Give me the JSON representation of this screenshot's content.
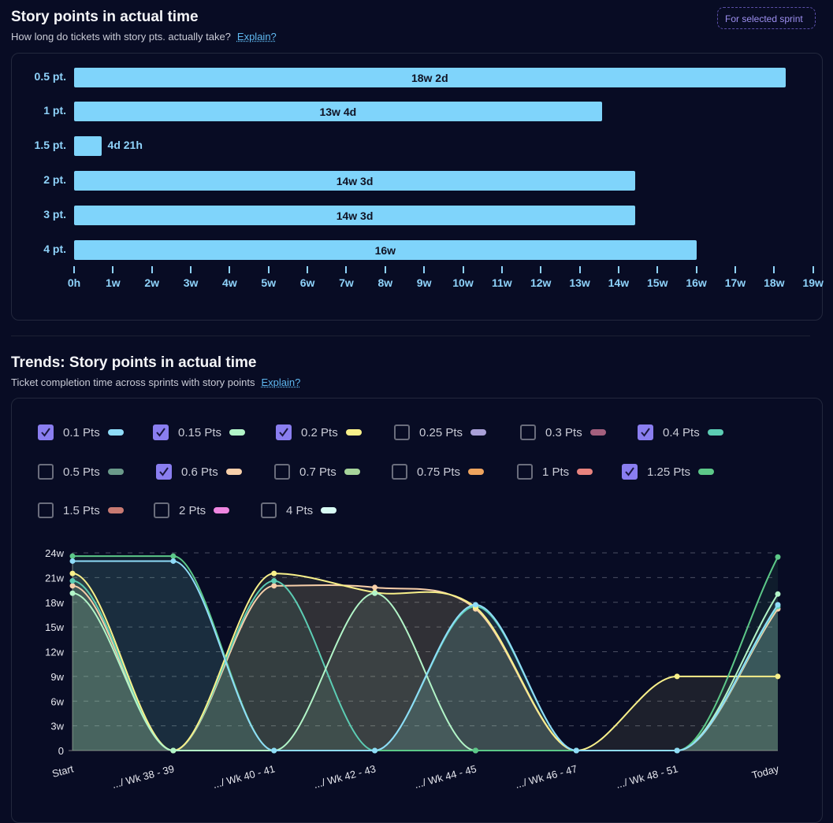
{
  "section1": {
    "title": "Story points in actual time",
    "subtitle": "How long do tickets with story pts. actually take?",
    "explain": "Explain?",
    "badge": "For selected sprint"
  },
  "section2": {
    "title": "Trends: Story points in actual time",
    "subtitle": "Ticket completion time across sprints with story points",
    "explain": "Explain?"
  },
  "chart_data": [
    {
      "type": "bar",
      "orientation": "horizontal",
      "categories": [
        "0.5 pt.",
        "1 pt.",
        "1.5 pt.",
        "2 pt.",
        "3 pt.",
        "4 pt."
      ],
      "values_weeks": [
        18.29,
        13.57,
        0.7,
        14.43,
        14.43,
        16
      ],
      "labels": [
        "18w 2d",
        "13w 4d",
        "4d 21h",
        "14w 3d",
        "14w 3d",
        "16w"
      ],
      "xticks": [
        "0h",
        "1w",
        "2w",
        "3w",
        "4w",
        "5w",
        "6w",
        "7w",
        "8w",
        "9w",
        "10w",
        "11w",
        "12w",
        "13w",
        "14w",
        "15w",
        "16w",
        "17w",
        "18w",
        "19w"
      ],
      "xlim": [
        0,
        19
      ],
      "color": "#7fd4fb"
    },
    {
      "type": "line",
      "categories": [
        "Start",
        ".../ Wk 38 - 39",
        ".../ Wk 40 - 41",
        ".../ Wk 42 - 43",
        ".../ Wk 44 - 45",
        ".../ Wk 46 - 47",
        ".../ Wk 48 - 51",
        "Today"
      ],
      "yticks": [
        "0",
        "3w",
        "6w",
        "9w",
        "12w",
        "15w",
        "18w",
        "21w",
        "24w"
      ],
      "ylim": [
        0,
        24
      ],
      "grid": true,
      "legend": [
        {
          "name": "0.1 Pts",
          "color": "#8fdcf8",
          "checked": true
        },
        {
          "name": "0.15 Pts",
          "color": "#b2f5c8",
          "checked": true
        },
        {
          "name": "0.2 Pts",
          "color": "#f8f08a",
          "checked": true
        },
        {
          "name": "0.25 Pts",
          "color": "#a9a0d8",
          "checked": false
        },
        {
          "name": "0.3 Pts",
          "color": "#a4607e",
          "checked": false
        },
        {
          "name": "0.4 Pts",
          "color": "#5ccdb4",
          "checked": true
        },
        {
          "name": "0.5 Pts",
          "color": "#6a9a8a",
          "checked": false
        },
        {
          "name": "0.6 Pts",
          "color": "#f7cfaa",
          "checked": true
        },
        {
          "name": "0.7 Pts",
          "color": "#a6d49a",
          "checked": false
        },
        {
          "name": "0.75 Pts",
          "color": "#eea45e",
          "checked": false
        },
        {
          "name": "1 Pts",
          "color": "#e8837e",
          "checked": false
        },
        {
          "name": "1.25 Pts",
          "color": "#5cc888",
          "checked": true
        },
        {
          "name": "1.5 Pts",
          "color": "#c87a72",
          "checked": false
        },
        {
          "name": "2 Pts",
          "color": "#ee86e0",
          "checked": false
        },
        {
          "name": "4 Pts",
          "color": "#d8fbf4",
          "checked": false
        }
      ],
      "series": [
        {
          "name": "0.6 Pts",
          "color": "#f7cfaa",
          "values": [
            20,
            0,
            20,
            19.8,
            17.2,
            0,
            0,
            17.2
          ]
        },
        {
          "name": "0.4 Pts",
          "color": "#5ccdb4",
          "values": [
            20.6,
            0,
            20.6,
            0,
            17.5,
            0,
            0,
            17.5
          ]
        },
        {
          "name": "0.2 Pts",
          "color": "#f8f08a",
          "values": [
            21.5,
            0,
            21.5,
            19.2,
            17.4,
            0,
            9,
            9
          ]
        },
        {
          "name": "0.15 Pts",
          "color": "#b2f5c8",
          "values": [
            19.1,
            0,
            0,
            19.1,
            0,
            0,
            0,
            19
          ]
        },
        {
          "name": "1.25 Pts",
          "color": "#5cc888",
          "values": [
            23.6,
            23.6,
            0,
            0,
            0,
            0,
            0,
            23.5
          ]
        },
        {
          "name": "0.1 Pts",
          "color": "#8fdcf8",
          "values": [
            23,
            23,
            0,
            0,
            17.7,
            0,
            0,
            17.7
          ]
        }
      ]
    }
  ]
}
